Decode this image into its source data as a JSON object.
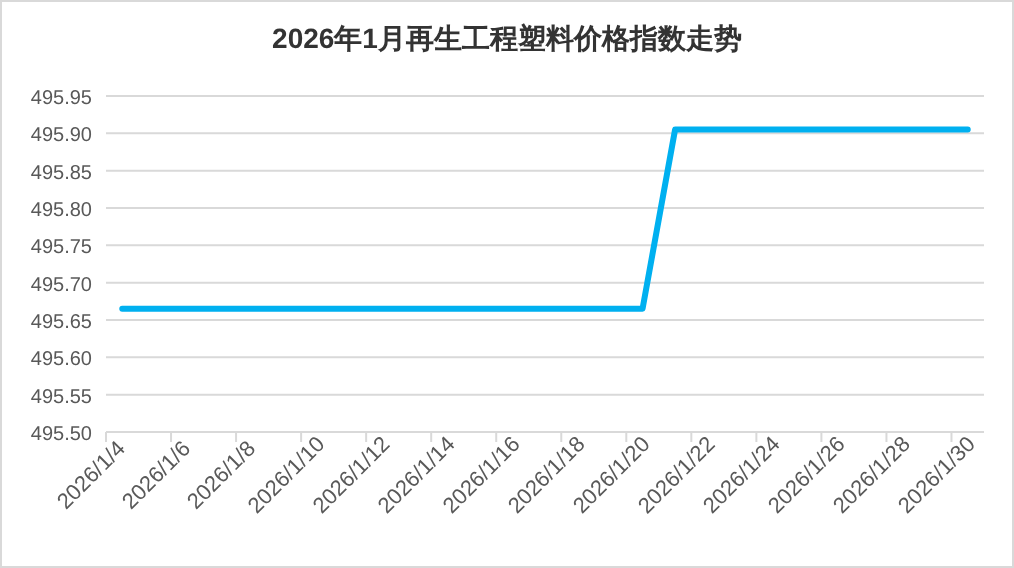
{
  "chart_data": {
    "type": "line",
    "title": "2026年1月再生工程塑料价格指数走势",
    "categories": [
      "2026/1/4",
      null,
      "2026/1/6",
      null,
      "2026/1/8",
      null,
      "2026/1/10",
      null,
      "2026/1/12",
      null,
      "2026/1/14",
      null,
      "2026/1/16",
      null,
      "2026/1/18",
      null,
      "2026/1/20",
      null,
      "2026/1/22",
      null,
      "2026/1/24",
      null,
      "2026/1/26",
      null,
      "2026/1/28",
      null,
      "2026/1/30"
    ],
    "series": [
      {
        "color": "#00b0f0",
        "values": [
          495.665,
          495.665,
          495.665,
          495.665,
          495.665,
          495.665,
          495.665,
          495.665,
          495.665,
          495.665,
          495.665,
          495.665,
          495.665,
          495.665,
          495.665,
          495.665,
          495.665,
          495.905,
          495.905,
          495.905,
          495.905,
          495.905,
          495.905,
          495.905,
          495.905,
          495.905,
          495.905
        ]
      }
    ],
    "ylim": [
      495.5,
      495.95
    ],
    "yticks": [
      {
        "value": 495.5,
        "label": "495.50"
      },
      {
        "value": 495.55,
        "label": "495.55"
      },
      {
        "value": 495.6,
        "label": "495.60"
      },
      {
        "value": 495.65,
        "label": "495.65"
      },
      {
        "value": 495.7,
        "label": "495.70"
      },
      {
        "value": 495.75,
        "label": "495.75"
      },
      {
        "value": 495.8,
        "label": "495.80"
      },
      {
        "value": 495.85,
        "label": "495.85"
      },
      {
        "value": 495.9,
        "label": "495.90"
      },
      {
        "value": 495.95,
        "label": "495.95"
      }
    ],
    "grid": "y",
    "marker": "none",
    "line_style": "solid"
  }
}
